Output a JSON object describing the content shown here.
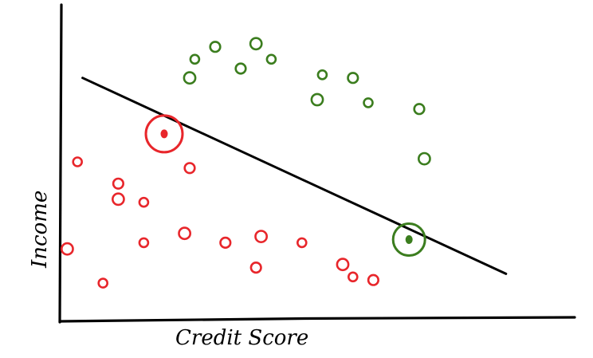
{
  "chart_data": {
    "type": "scatter",
    "title": "",
    "xlabel": "Credit Score",
    "ylabel": "Income",
    "xlim": [
      0,
      100
    ],
    "ylim": [
      0,
      100
    ],
    "grid": false,
    "legend": "none",
    "series": [
      {
        "color": "#3b7d1e",
        "points": [
          [
            26,
            83
          ],
          [
            30,
            87
          ],
          [
            38,
            88
          ],
          [
            41,
            83
          ],
          [
            35,
            80
          ],
          [
            25,
            77
          ],
          [
            51,
            78
          ],
          [
            57,
            77
          ],
          [
            50,
            70
          ],
          [
            60,
            69
          ],
          [
            70,
            67
          ],
          [
            71,
            51
          ]
        ]
      },
      {
        "color": "#e8262b",
        "points": [
          [
            3,
            50
          ],
          [
            11,
            43
          ],
          [
            11,
            38
          ],
          [
            16,
            37
          ],
          [
            25,
            48
          ],
          [
            24,
            27
          ],
          [
            16,
            24
          ],
          [
            32,
            24
          ],
          [
            39,
            26
          ],
          [
            47,
            24
          ],
          [
            38,
            16
          ],
          [
            55,
            17
          ],
          [
            57,
            13
          ],
          [
            61,
            12
          ],
          [
            1,
            22
          ],
          [
            8,
            11
          ]
        ]
      }
    ],
    "decision_boundary": {
      "color": "#000000",
      "from": [
        4,
        77
      ],
      "to": [
        87,
        14
      ]
    },
    "highlighted_points": [
      {
        "color": "#e8262b",
        "point": [
          20,
          59
        ]
      },
      {
        "color": "#3b7d1e",
        "point": [
          68,
          25
        ]
      }
    ]
  }
}
